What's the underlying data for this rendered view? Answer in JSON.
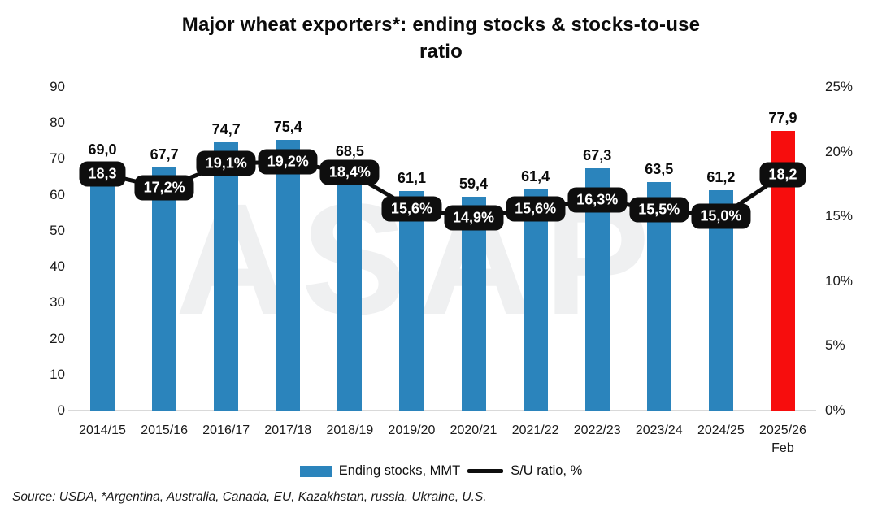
{
  "header": {
    "title_line1": "Major wheat exporters*: ending stocks & stocks-to-use",
    "title_line2": "ratio"
  },
  "watermark": "ASAP",
  "source": "Source: USDA, *Argentina, Australia, Canada, EU, Kazakhstan, russia, Ukraine, U.S.",
  "colors": {
    "bar_blue": "#2b84bc",
    "bar_red": "#f70d0d",
    "line_black": "#0e0e0e",
    "label_box_bg": "#0e0e0e",
    "label_box_text": "#ffffff",
    "baseline_gray": "#d9d9d9"
  },
  "legend": [
    {
      "label": "Ending stocks, MMT",
      "type": "bar",
      "color": "#2b84bc"
    },
    {
      "label": "S/U ratio, %",
      "type": "line",
      "color": "#0e0e0e"
    }
  ],
  "chart_data": {
    "type": "bar+line",
    "title": "Major wheat exporters*: ending stocks & stocks-to-use ratio",
    "categories": [
      "2014/15",
      "2015/16",
      "2016/17",
      "2017/18",
      "2018/19",
      "2019/20",
      "2020/21",
      "2021/22",
      "2022/23",
      "2023/24",
      "2024/25",
      "2025/26"
    ],
    "category_sublabels": [
      "",
      "",
      "",
      "",
      "",
      "",
      "",
      "",
      "",
      "",
      "",
      "Feb"
    ],
    "series": [
      {
        "name": "Ending stocks, MMT",
        "type": "bar",
        "values": [
          69.0,
          67.7,
          74.7,
          75.4,
          68.5,
          61.1,
          59.4,
          61.4,
          67.3,
          63.5,
          61.2,
          77.9
        ],
        "labels": [
          "69,0",
          "67,7",
          "74,7",
          "75,4",
          "68,5",
          "61,1",
          "59,4",
          "61,4",
          "67,3",
          "63,5",
          "61,2",
          "77,9"
        ],
        "bar_colors": [
          "#2b84bc",
          "#2b84bc",
          "#2b84bc",
          "#2b84bc",
          "#2b84bc",
          "#2b84bc",
          "#2b84bc",
          "#2b84bc",
          "#2b84bc",
          "#2b84bc",
          "#2b84bc",
          "#f70d0d"
        ]
      },
      {
        "name": "S/U ratio, %",
        "type": "line",
        "values": [
          18.3,
          17.2,
          19.1,
          19.2,
          18.4,
          15.6,
          14.9,
          15.6,
          16.3,
          15.5,
          15.0,
          18.2
        ],
        "labels": [
          "18,3",
          "17,2%",
          "19,1%",
          "19,2%",
          "18,4%",
          "15,6%",
          "14,9%",
          "15,6%",
          "16,3%",
          "15,5%",
          "15,0%",
          "18,2"
        ]
      }
    ],
    "left_axis": {
      "ticks": [
        0,
        10,
        20,
        30,
        40,
        50,
        60,
        70,
        80,
        90
      ],
      "max": 90
    },
    "right_axis": {
      "ticks": [
        "0%",
        "5%",
        "10%",
        "15%",
        "20%",
        "25%"
      ],
      "tick_values": [
        0,
        5,
        10,
        15,
        20,
        25
      ],
      "max": 25
    },
    "grid": false,
    "legend_position": "bottom"
  }
}
